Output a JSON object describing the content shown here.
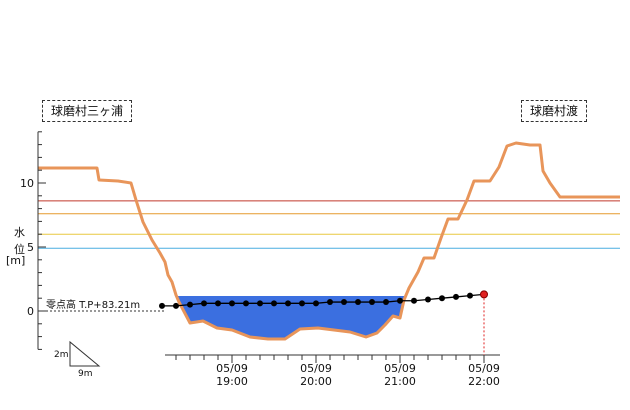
{
  "chart_data": {
    "type": "line",
    "left_station": "球磨村三ヶ浦",
    "right_station": "球磨村渡",
    "ylabel": [
      "水",
      "位",
      "[m]"
    ],
    "y_ticks": [
      0,
      5,
      10
    ],
    "ylim": [
      -3,
      14
    ],
    "datum_label": "零点高 T.P+83.21m",
    "x_tick_labels": [
      {
        "date": "05/09",
        "time": "19:00",
        "minutes": 0
      },
      {
        "date": "05/09",
        "time": "20:00",
        "minutes": 60
      },
      {
        "date": "05/09",
        "time": "21:00",
        "minutes": 120
      },
      {
        "date": "05/09",
        "time": "22:00",
        "minutes": 180
      }
    ],
    "x_range_minutes": [
      -50,
      190
    ],
    "water_level_series": [
      {
        "t": -50,
        "v": 0.4
      },
      {
        "t": -40,
        "v": 0.4
      },
      {
        "t": -30,
        "v": 0.5
      },
      {
        "t": -20,
        "v": 0.6
      },
      {
        "t": -10,
        "v": 0.6
      },
      {
        "t": 0,
        "v": 0.6
      },
      {
        "t": 10,
        "v": 0.6
      },
      {
        "t": 20,
        "v": 0.6
      },
      {
        "t": 30,
        "v": 0.6
      },
      {
        "t": 40,
        "v": 0.6
      },
      {
        "t": 50,
        "v": 0.6
      },
      {
        "t": 60,
        "v": 0.6
      },
      {
        "t": 70,
        "v": 0.7
      },
      {
        "t": 80,
        "v": 0.7
      },
      {
        "t": 90,
        "v": 0.7
      },
      {
        "t": 100,
        "v": 0.7
      },
      {
        "t": 110,
        "v": 0.7
      },
      {
        "t": 120,
        "v": 0.8
      },
      {
        "t": 130,
        "v": 0.8
      },
      {
        "t": 140,
        "v": 0.9
      },
      {
        "t": 150,
        "v": 1.0
      },
      {
        "t": 160,
        "v": 1.1
      },
      {
        "t": 170,
        "v": 1.2
      },
      {
        "t": 180,
        "v": 1.3
      }
    ],
    "threshold_lines": [
      {
        "level": 8.6,
        "color": "#c0392b"
      },
      {
        "level": 7.6,
        "color": "#e69a2e"
      },
      {
        "level": 6.0,
        "color": "#e8c840"
      },
      {
        "level": 4.9,
        "color": "#4aaee0"
      }
    ],
    "colors": {
      "terrain": "#e8955a",
      "water": "#3b6fe0",
      "series": "#000000",
      "latest_point": "#e02020"
    },
    "scale_icon": {
      "vertical": "2m",
      "horizontal": "9m"
    }
  }
}
